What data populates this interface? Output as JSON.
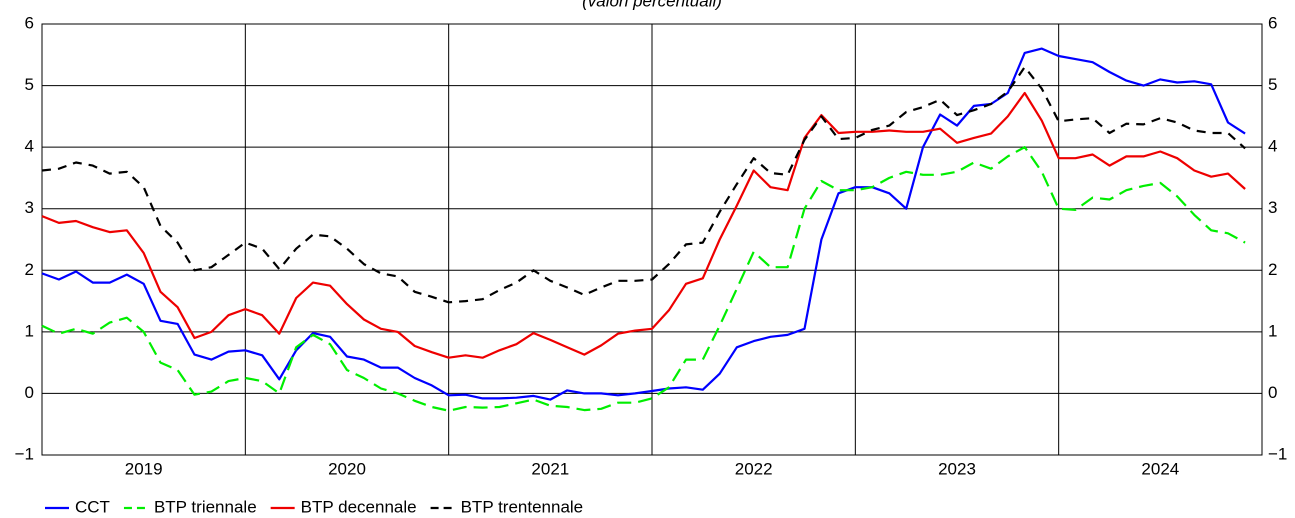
{
  "chart_data": {
    "type": "line",
    "subtitle": "(valori percentuali)",
    "x": [
      2019,
      2019.083,
      2019.167,
      2019.25,
      2019.333,
      2019.417,
      2019.5,
      2019.583,
      2019.667,
      2019.75,
      2019.833,
      2019.917,
      2020,
      2020.083,
      2020.167,
      2020.25,
      2020.333,
      2020.417,
      2020.5,
      2020.583,
      2020.667,
      2020.75,
      2020.833,
      2020.917,
      2021,
      2021.083,
      2021.167,
      2021.25,
      2021.333,
      2021.417,
      2021.5,
      2021.583,
      2021.667,
      2021.75,
      2021.833,
      2021.917,
      2022,
      2022.083,
      2022.167,
      2022.25,
      2022.333,
      2022.417,
      2022.5,
      2022.583,
      2022.667,
      2022.75,
      2022.833,
      2022.917,
      2023,
      2023.083,
      2023.167,
      2023.25,
      2023.333,
      2023.417,
      2023.5,
      2023.583,
      2023.667,
      2023.75,
      2023.833,
      2023.917,
      2024,
      2024.083,
      2024.167,
      2024.25,
      2024.333,
      2024.417,
      2024.5,
      2024.583,
      2024.667,
      2024.75,
      2024.833,
      2024.917
    ],
    "series": [
      {
        "name": "CCT",
        "color": "#0000ff",
        "dash": "none",
        "values": [
          1.95,
          1.85,
          1.98,
          1.8,
          1.8,
          1.93,
          1.78,
          1.18,
          1.13,
          0.63,
          0.55,
          0.68,
          0.7,
          0.62,
          0.23,
          0.7,
          0.98,
          0.92,
          0.6,
          0.55,
          0.42,
          0.42,
          0.25,
          0.13,
          -0.03,
          -0.02,
          -0.08,
          -0.08,
          -0.07,
          -0.04,
          -0.1,
          0.05,
          0.0,
          0.0,
          -0.03,
          0.0,
          0.04,
          0.08,
          0.1,
          0.06,
          0.32,
          0.75,
          0.85,
          0.92,
          0.95,
          1.05,
          2.5,
          3.25,
          3.35,
          3.35,
          3.25,
          3.0,
          4.0,
          4.53,
          4.35,
          4.67,
          4.7,
          4.88,
          5.53,
          5.6,
          5.48,
          5.43,
          5.38,
          5.22,
          5.08,
          5.0,
          5.1,
          5.05,
          5.07,
          5.02,
          4.4,
          4.22
        ]
      },
      {
        "name": "BTP triennale",
        "color": "#00ee00",
        "dash": "14,7",
        "values": [
          1.1,
          0.97,
          1.05,
          0.97,
          1.15,
          1.23,
          1.0,
          0.5,
          0.38,
          -0.02,
          0.03,
          0.2,
          0.25,
          0.2,
          0.0,
          0.75,
          0.95,
          0.8,
          0.38,
          0.25,
          0.08,
          0.0,
          -0.12,
          -0.22,
          -0.28,
          -0.22,
          -0.23,
          -0.22,
          -0.16,
          -0.1,
          -0.2,
          -0.22,
          -0.27,
          -0.25,
          -0.15,
          -0.15,
          -0.08,
          0.1,
          0.55,
          0.55,
          1.1,
          1.7,
          2.3,
          2.05,
          2.05,
          3.0,
          3.45,
          3.3,
          3.3,
          3.35,
          3.5,
          3.6,
          3.55,
          3.55,
          3.6,
          3.75,
          3.65,
          3.85,
          4.0,
          3.6,
          3.0,
          2.98,
          3.18,
          3.15,
          3.3,
          3.37,
          3.42,
          3.2,
          2.9,
          2.65,
          2.6,
          2.45
        ]
      },
      {
        "name": "BTP decennale",
        "color": "#ee0000",
        "dash": "none",
        "values": [
          2.88,
          2.77,
          2.8,
          2.7,
          2.62,
          2.65,
          2.28,
          1.65,
          1.4,
          0.9,
          1.0,
          1.27,
          1.37,
          1.27,
          0.97,
          1.55,
          1.8,
          1.75,
          1.45,
          1.2,
          1.05,
          1.0,
          0.77,
          0.67,
          0.58,
          0.62,
          0.58,
          0.7,
          0.8,
          0.98,
          0.87,
          0.75,
          0.63,
          0.78,
          0.97,
          1.02,
          1.05,
          1.35,
          1.78,
          1.87,
          2.5,
          3.05,
          3.62,
          3.35,
          3.3,
          4.15,
          4.52,
          4.23,
          4.25,
          4.25,
          4.27,
          4.25,
          4.25,
          4.3,
          4.07,
          4.15,
          4.22,
          4.5,
          4.88,
          4.43,
          3.82,
          3.82,
          3.88,
          3.7,
          3.85,
          3.85,
          3.93,
          3.82,
          3.62,
          3.52,
          3.57,
          3.32
        ]
      },
      {
        "name": "BTP trentennale",
        "color": "#000000",
        "dash": "9,7",
        "values": [
          3.62,
          3.65,
          3.75,
          3.7,
          3.57,
          3.6,
          3.35,
          2.72,
          2.45,
          2.0,
          2.05,
          2.25,
          2.45,
          2.35,
          2.02,
          2.35,
          2.58,
          2.55,
          2.35,
          2.1,
          1.95,
          1.9,
          1.65,
          1.57,
          1.48,
          1.5,
          1.53,
          1.68,
          1.8,
          2.0,
          1.83,
          1.72,
          1.6,
          1.72,
          1.83,
          1.83,
          1.85,
          2.1,
          2.42,
          2.45,
          2.95,
          3.4,
          3.82,
          3.58,
          3.55,
          4.12,
          4.5,
          4.13,
          4.15,
          4.28,
          4.35,
          4.57,
          4.65,
          4.77,
          4.52,
          4.6,
          4.7,
          4.9,
          5.3,
          4.95,
          4.42,
          4.45,
          4.47,
          4.23,
          4.38,
          4.37,
          4.47,
          4.4,
          4.27,
          4.23,
          4.23,
          3.98
        ]
      }
    ],
    "xlim": [
      2019,
      2025
    ],
    "xticks": [
      {
        "value": 2019.5,
        "label": "2019"
      },
      {
        "value": 2020.5,
        "label": "2020"
      },
      {
        "value": 2021.5,
        "label": "2021"
      },
      {
        "value": 2022.5,
        "label": "2022"
      },
      {
        "value": 2023.5,
        "label": "2023"
      },
      {
        "value": 2024.5,
        "label": "2024"
      }
    ],
    "xgrid": [
      2020,
      2021,
      2022,
      2023,
      2024
    ],
    "ylim": [
      -1,
      6
    ],
    "yticks": [
      {
        "value": -1,
        "label": "−1"
      },
      0,
      1,
      2,
      3,
      4,
      5,
      6
    ],
    "grid": true,
    "legend": "bottom-left"
  }
}
